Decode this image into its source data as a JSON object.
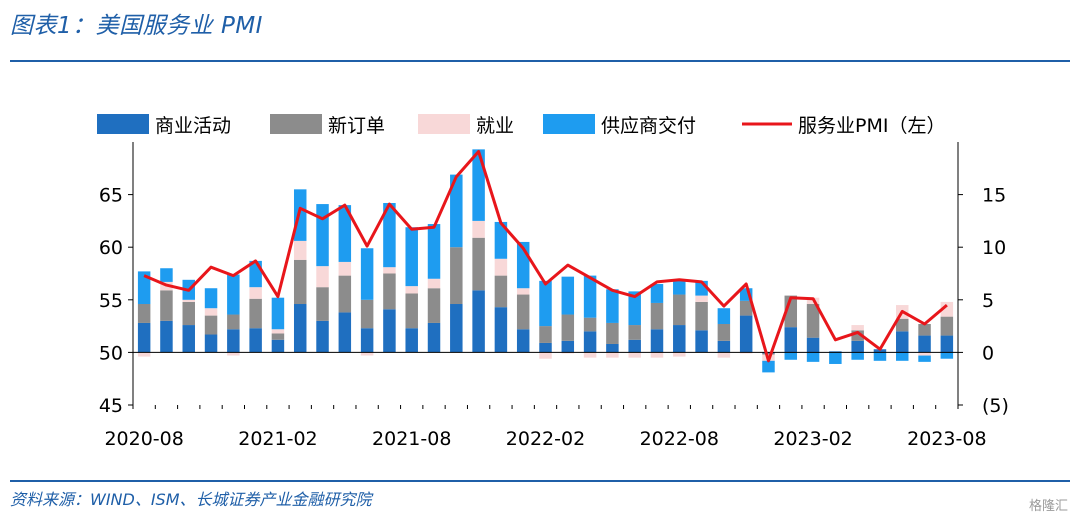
{
  "header": {
    "title": "图表1：美国服务业 PMI"
  },
  "footer": {
    "source": "资料来源：WIND、ISM、长城证券产业金融研究院",
    "watermark": "格隆汇"
  },
  "colors": {
    "business_activity": "#1f6fc0",
    "new_orders": "#8c8c8c",
    "employment": "#f8d8d8",
    "supplier_deliveries": "#1e9cf0",
    "pmi_line": "#e8161b",
    "title": "#1f5fa8"
  },
  "chart_data": {
    "type": "bar",
    "subtype": "stacked-bar-with-line",
    "title": "",
    "legend": {
      "placement": "top",
      "entries": [
        "商业活动",
        "新订单",
        "就业",
        "供应商交付",
        "服务业PMI（左）"
      ]
    },
    "x": [
      "2020-08",
      "2020-09",
      "2020-10",
      "2020-11",
      "2020-12",
      "2021-01",
      "2021-02",
      "2021-03",
      "2021-04",
      "2021-05",
      "2021-06",
      "2021-07",
      "2021-08",
      "2021-09",
      "2021-10",
      "2021-11",
      "2021-12",
      "2022-01",
      "2022-02",
      "2022-03",
      "2022-04",
      "2022-05",
      "2022-06",
      "2022-07",
      "2022-08",
      "2022-09",
      "2022-10",
      "2022-11",
      "2022-12",
      "2023-01",
      "2023-02",
      "2023-03",
      "2023-04",
      "2023-05",
      "2023-06",
      "2023-07",
      "2023-08"
    ],
    "x_tick_labels": [
      "2020-08",
      "2021-02",
      "2021-08",
      "2022-02",
      "2022-08",
      "2023-02",
      "2023-08"
    ],
    "left_axis": {
      "ylim": [
        45,
        70
      ],
      "ticks": [
        45,
        50,
        55,
        60,
        65
      ]
    },
    "right_axis": {
      "ylim": [
        -5,
        20
      ],
      "ticks": [
        -5,
        0,
        5,
        10,
        15
      ],
      "tick_labels": [
        "(5)",
        "0",
        "5",
        "10",
        "15"
      ]
    },
    "series": [
      {
        "name": "商业活动",
        "axis": "right",
        "values": [
          2.8,
          3.0,
          2.6,
          1.7,
          2.2,
          2.3,
          1.2,
          4.6,
          3.0,
          3.8,
          2.3,
          4.1,
          2.3,
          2.8,
          4.6,
          5.9,
          4.3,
          2.2,
          0.9,
          1.1,
          2.0,
          0.8,
          1.2,
          2.2,
          2.6,
          2.1,
          1.1,
          3.5,
          -0.1,
          2.4,
          1.4,
          0.1,
          1.1,
          0.3,
          2.0,
          1.6,
          1.6
        ]
      },
      {
        "name": "新订单",
        "axis": "right",
        "values": [
          1.8,
          2.9,
          2.2,
          1.8,
          1.4,
          2.8,
          0.6,
          4.2,
          3.2,
          3.5,
          2.7,
          3.4,
          3.3,
          3.3,
          5.4,
          5.0,
          3.0,
          3.3,
          1.6,
          2.5,
          1.3,
          2.0,
          1.4,
          2.5,
          2.9,
          2.7,
          1.6,
          1.4,
          -0.1,
          3.0,
          3.2,
          0.0,
          1.0,
          0.0,
          1.2,
          1.1,
          1.8
        ]
      },
      {
        "name": "就业",
        "axis": "right",
        "values": [
          -0.4,
          0.8,
          0.2,
          0.7,
          -0.3,
          1.1,
          0.4,
          1.8,
          2.0,
          1.3,
          -0.3,
          0.6,
          0.7,
          0.9,
          0.0,
          1.6,
          1.6,
          0.6,
          -0.6,
          -0.1,
          -0.5,
          -0.5,
          -0.5,
          -0.5,
          -0.4,
          0.6,
          -0.5,
          -0.1,
          -0.6,
          0.0,
          0.6,
          0.0,
          0.5,
          0.0,
          1.3,
          -0.3,
          1.4
        ]
      },
      {
        "name": "供应商交付",
        "axis": "right",
        "values": [
          3.1,
          1.3,
          1.9,
          1.9,
          3.8,
          2.5,
          3.0,
          4.9,
          5.9,
          5.4,
          4.9,
          6.1,
          5.6,
          5.2,
          6.9,
          6.8,
          3.5,
          4.4,
          4.3,
          3.6,
          4.0,
          3.2,
          3.2,
          1.8,
          1.3,
          1.4,
          1.5,
          1.2,
          -1.1,
          -0.7,
          -0.9,
          -1.1,
          -0.7,
          -0.8,
          -0.8,
          -0.6,
          -0.6
        ]
      },
      {
        "name": "服务业PMI（左）",
        "axis": "left",
        "type": "line",
        "values": [
          57.3,
          56.4,
          55.9,
          58.1,
          57.3,
          58.7,
          55.3,
          63.7,
          62.7,
          64.0,
          60.1,
          64.1,
          61.7,
          61.9,
          66.7,
          69.1,
          62.3,
          59.9,
          56.5,
          58.3,
          57.1,
          55.9,
          55.3,
          56.7,
          56.9,
          56.7,
          54.4,
          56.5,
          49.2,
          55.2,
          55.1,
          51.2,
          51.9,
          50.3,
          53.9,
          52.7,
          54.5
        ]
      }
    ]
  }
}
